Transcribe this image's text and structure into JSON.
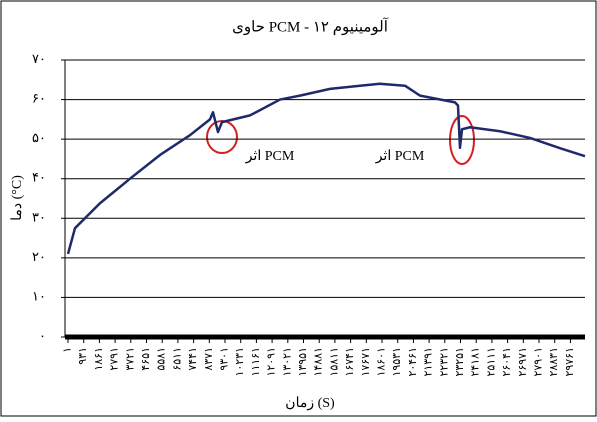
{
  "chart_data": {
    "type": "line",
    "title": "حاوی PCM - آلومینیوم ۱۲",
    "x_label": "زمان (S)",
    "y_label": "دما (°C)",
    "annotations": [
      "اثر PCM",
      "اثر PCM"
    ],
    "xlim": [
      1,
      30625
    ],
    "ylim": [
      0,
      70
    ],
    "yticks": [
      {
        "value": 0,
        "label": "۰"
      },
      {
        "value": 10,
        "label": "۱۰"
      },
      {
        "value": 20,
        "label": "۲۰"
      },
      {
        "value": 30,
        "label": "۳۰"
      },
      {
        "value": 40,
        "label": "۴۰"
      },
      {
        "value": 50,
        "label": "۵۰"
      },
      {
        "value": 60,
        "label": "۶۰"
      },
      {
        "value": 70,
        "label": "۷۰"
      }
    ],
    "xticks": [
      {
        "value": 1,
        "label": "۱"
      },
      {
        "value": 931,
        "label": "۹۳۱"
      },
      {
        "value": 1861,
        "label": "۱۸۶۱"
      },
      {
        "value": 2791,
        "label": "۲۷۹۱"
      },
      {
        "value": 3721,
        "label": "۳۷۲۱"
      },
      {
        "value": 4651,
        "label": "۴۶۵۱"
      },
      {
        "value": 5581,
        "label": "۵۵۸۱"
      },
      {
        "value": 6511,
        "label": "۶۵۱۱"
      },
      {
        "value": 7441,
        "label": "۷۴۴۱"
      },
      {
        "value": 8371,
        "label": "۸۳۷۱"
      },
      {
        "value": 9301,
        "label": "۹۳۰۱"
      },
      {
        "value": 10231,
        "label": "۱۰۲۳۱"
      },
      {
        "value": 11161,
        "label": "۱۱۱۶۱"
      },
      {
        "value": 12091,
        "label": "۱۲۰۹۱"
      },
      {
        "value": 13021,
        "label": "۱۳۰۲۱"
      },
      {
        "value": 13951,
        "label": "۱۳۹۵۱"
      },
      {
        "value": 14881,
        "label": "۱۴۸۸۱"
      },
      {
        "value": 15811,
        "label": "۱۵۸۱۱"
      },
      {
        "value": 16741,
        "label": "۱۶۷۴۱"
      },
      {
        "value": 17671,
        "label": "۱۷۶۷۱"
      },
      {
        "value": 18601,
        "label": "۱۸۶۰۱"
      },
      {
        "value": 19531,
        "label": "۱۹۵۳۱"
      },
      {
        "value": 20461,
        "label": "۲۰۴۶۱"
      },
      {
        "value": 21391,
        "label": "۲۱۳۹۱"
      },
      {
        "value": 22321,
        "label": "۲۲۳۲۱"
      },
      {
        "value": 23251,
        "label": "۲۳۲۵۱"
      },
      {
        "value": 24181,
        "label": "۲۴۱۸۱"
      },
      {
        "value": 25111,
        "label": "۲۵۱۱۱"
      },
      {
        "value": 26041,
        "label": "۲۶۰۴۱"
      },
      {
        "value": 26971,
        "label": "۲۶۹۷۱"
      },
      {
        "value": 27901,
        "label": "۲۷۹۰۱"
      },
      {
        "value": 28831,
        "label": "۲۸۸۳۱"
      },
      {
        "value": 29761,
        "label": "۲۹۷۶۱"
      }
    ],
    "grid": true,
    "color": "#1f2a6b",
    "x": [
      1,
      415,
      1896,
      3672,
      5450,
      7227,
      8411,
      8589,
      8885,
      9123,
      10781,
      12558,
      13743,
      15520,
      17297,
      18482,
      19962,
      20851,
      22924,
      23102,
      23220,
      23339,
      23813,
      25590,
      27367,
      29144,
      30625
    ],
    "values": [
      21,
      27.5,
      33.8,
      40,
      46,
      51,
      55,
      56.8,
      51.8,
      54.3,
      56,
      60,
      61,
      62.7,
      63.5,
      64,
      63.5,
      61,
      59.3,
      58.5,
      47.8,
      52.5,
      53,
      52,
      50.3,
      47.7,
      45.7
    ]
  }
}
